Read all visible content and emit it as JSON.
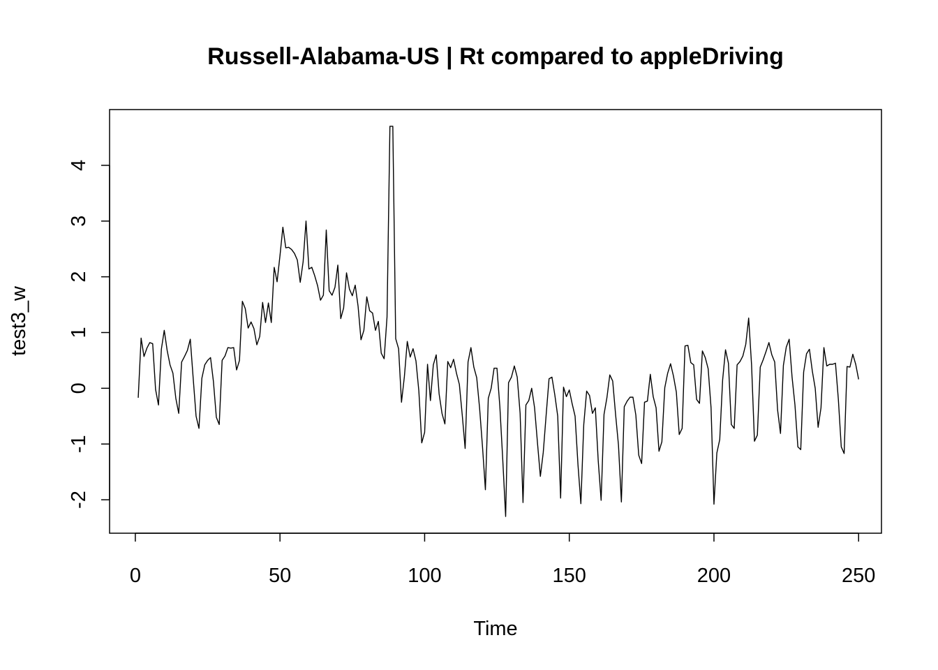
{
  "chart_data": {
    "type": "line",
    "title": "Russell-Alabama-US | Rt compared to appleDriving",
    "xlabel": "Time",
    "ylabel": "test3_w",
    "xlim": [
      -8.9,
      257.9
    ],
    "ylim": [
      -2.6,
      5.0
    ],
    "x_ticks": [
      0,
      50,
      100,
      150,
      200,
      250
    ],
    "y_ticks": [
      -2,
      -1,
      0,
      1,
      2,
      3,
      4
    ],
    "x_tick_labels": [
      "0",
      "50",
      "100",
      "150",
      "200",
      "250"
    ],
    "y_tick_labels": [
      "-2",
      "-1",
      "0",
      "1",
      "2",
      "3",
      "4"
    ],
    "grid": false,
    "legend": "none",
    "line_color": "#000000",
    "series": [
      {
        "x_start": 1,
        "x_step": 1,
        "values": [
          -0.17,
          0.9,
          0.57,
          0.72,
          0.82,
          0.8,
          -0.02,
          -0.3,
          0.7,
          1.04,
          0.68,
          0.42,
          0.27,
          -0.18,
          -0.45,
          0.47,
          0.57,
          0.68,
          0.88,
          0.18,
          -0.5,
          -0.72,
          0.18,
          0.42,
          0.5,
          0.55,
          0.12,
          -0.52,
          -0.65,
          0.5,
          0.58,
          0.73,
          0.72,
          0.73,
          0.33,
          0.5,
          1.56,
          1.43,
          1.08,
          1.19,
          1.07,
          0.78,
          0.93,
          1.54,
          1.18,
          1.53,
          1.18,
          2.17,
          1.91,
          2.38,
          2.89,
          2.52,
          2.53,
          2.49,
          2.42,
          2.3,
          1.9,
          2.27,
          3.0,
          2.14,
          2.17,
          2.02,
          1.84,
          1.58,
          1.67,
          2.84,
          1.75,
          1.67,
          1.81,
          2.21,
          1.25,
          1.44,
          2.07,
          1.78,
          1.66,
          1.85,
          1.47,
          0.87,
          1.04,
          1.64,
          1.39,
          1.35,
          1.04,
          1.2,
          0.63,
          0.53,
          1.28,
          4.7,
          4.7,
          0.89,
          0.71,
          -0.25,
          0.21,
          0.84,
          0.56,
          0.71,
          0.49,
          -0.05,
          -0.98,
          -0.79,
          0.43,
          -0.22,
          0.42,
          0.6,
          -0.1,
          -0.45,
          -0.64,
          0.48,
          0.37,
          0.52,
          0.27,
          0.07,
          -0.48,
          -1.08,
          0.47,
          0.73,
          0.38,
          0.19,
          -0.36,
          -1.05,
          -1.82,
          -0.18,
          0.0,
          0.36,
          0.36,
          -0.33,
          -1.28,
          -2.3,
          0.1,
          0.2,
          0.4,
          0.2,
          -0.45,
          -2.05,
          -0.3,
          -0.22,
          0.0,
          -0.35,
          -0.98,
          -1.58,
          -1.15,
          -0.48,
          0.17,
          0.2,
          -0.12,
          -0.5,
          -1.97,
          0.02,
          -0.15,
          -0.03,
          -0.28,
          -0.5,
          -1.37,
          -2.07,
          -0.65,
          -0.05,
          -0.13,
          -0.45,
          -0.35,
          -1.3,
          -2.01,
          -0.47,
          -0.17,
          0.24,
          0.13,
          -0.47,
          -1.02,
          -2.04,
          -0.33,
          -0.23,
          -0.16,
          -0.16,
          -0.48,
          -1.2,
          -1.35,
          -0.25,
          -0.23,
          0.25,
          -0.15,
          -0.35,
          -1.13,
          -0.96,
          0.01,
          0.27,
          0.44,
          0.22,
          -0.07,
          -0.83,
          -0.72,
          0.76,
          0.77,
          0.46,
          0.42,
          -0.2,
          -0.27,
          0.67,
          0.55,
          0.35,
          -0.35,
          -2.08,
          -1.16,
          -0.92,
          0.15,
          0.69,
          0.45,
          -0.65,
          -0.72,
          0.42,
          0.48,
          0.58,
          0.79,
          1.26,
          0.42,
          -0.95,
          -0.84,
          0.38,
          0.51,
          0.66,
          0.82,
          0.6,
          0.47,
          -0.39,
          -0.81,
          0.41,
          0.74,
          0.88,
          0.2,
          -0.3,
          -1.05,
          -1.1,
          0.29,
          0.62,
          0.7,
          0.31,
          0.0,
          -0.7,
          -0.35,
          0.73,
          0.4,
          0.43,
          0.43,
          0.45,
          -0.2,
          -1.05,
          -1.17,
          0.39,
          0.38,
          0.61,
          0.43,
          0.16
        ]
      }
    ]
  }
}
